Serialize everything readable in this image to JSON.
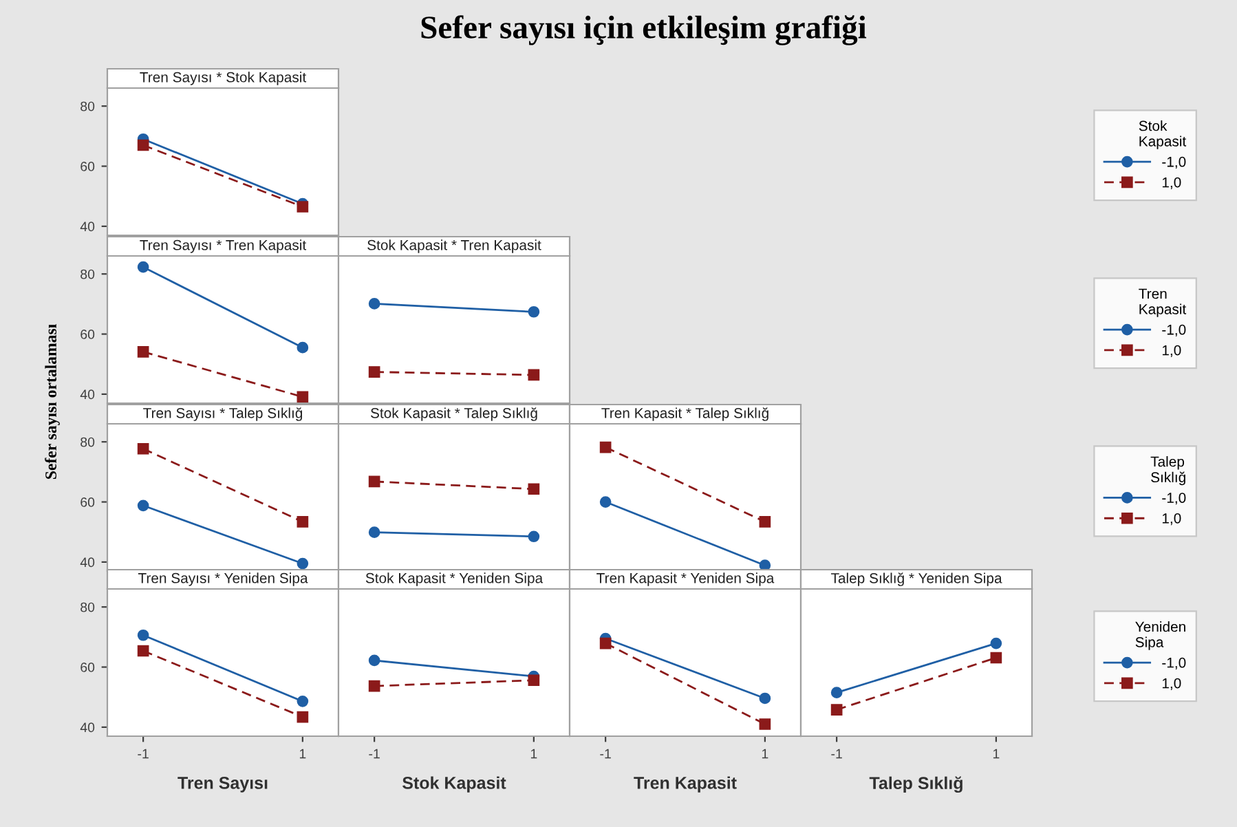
{
  "chart_data": [
    {
      "type": "line",
      "annotations": [
        "Sefer sayısı için etkileşim grafiği"
      ],
      "subtitle": "Tren Sayısı * Stok Kapasit",
      "categories": [
        "-1",
        "1"
      ],
      "ylim": [
        37,
        86
      ],
      "yticks": [
        40,
        60,
        80
      ],
      "tick_labels": "y",
      "legend": "right",
      "legend_title": "Stok Kapasit",
      "series": [
        {
          "name": "-1,0",
          "color": "#1f5fa5",
          "marker": "circle",
          "line_style": "solid",
          "values": [
            69,
            47.5
          ]
        },
        {
          "name": "1,0",
          "color": "#8b1a1a",
          "marker": "square",
          "line_style": "dashed",
          "values": [
            67,
            46.5
          ]
        }
      ]
    },
    {
      "type": "line",
      "subtitle": "Tren Sayısı * Tren Kapasit",
      "ylabel": "Sefer sayısı ortalaması",
      "categories": [
        "-1",
        "1"
      ],
      "ylim": [
        37,
        86
      ],
      "yticks": [
        40,
        60,
        80
      ],
      "tick_labels": "y",
      "series": [
        {
          "color": "#1f5fa5",
          "marker": "circle",
          "line_style": "solid",
          "values": [
            82.3,
            55.5
          ]
        },
        {
          "color": "#8b1a1a",
          "marker": "square",
          "line_style": "dashed",
          "values": [
            54.1,
            39.1
          ]
        }
      ]
    },
    {
      "type": "line",
      "subtitle": "Stok Kapasit * Tren Kapasit",
      "categories": [
        "-1",
        "1"
      ],
      "ylim": [
        37,
        86
      ],
      "yticks": [
        40,
        60,
        80
      ],
      "tick_labels": false,
      "legend": "right",
      "legend_title": "Tren Kapasit",
      "series": [
        {
          "name": "-1,0",
          "color": "#1f5fa5",
          "marker": "circle",
          "line_style": "solid",
          "values": [
            70.1,
            67.4
          ]
        },
        {
          "name": "1,0",
          "color": "#8b1a1a",
          "marker": "square",
          "line_style": "dashed",
          "values": [
            47.4,
            46.4
          ]
        }
      ]
    },
    {
      "type": "line",
      "subtitle": "Tren Sayısı * Talep Sıklığ",
      "categories": [
        "-1",
        "1"
      ],
      "ylim": [
        37,
        86
      ],
      "yticks": [
        40,
        60,
        80
      ],
      "tick_labels": "y",
      "series": [
        {
          "color": "#1f5fa5",
          "marker": "circle",
          "line_style": "solid",
          "values": [
            58.8,
            39.5
          ]
        },
        {
          "color": "#8b1a1a",
          "marker": "square",
          "line_style": "dashed",
          "values": [
            77.7,
            53.4
          ]
        }
      ]
    },
    {
      "type": "line",
      "subtitle": "Stok Kapasit * Talep Sıklığ",
      "categories": [
        "-1",
        "1"
      ],
      "ylim": [
        37,
        86
      ],
      "yticks": [
        40,
        60,
        80
      ],
      "tick_labels": false,
      "series": [
        {
          "color": "#1f5fa5",
          "marker": "circle",
          "line_style": "solid",
          "values": [
            49.9,
            48.5
          ]
        },
        {
          "color": "#8b1a1a",
          "marker": "square",
          "line_style": "dashed",
          "values": [
            66.8,
            64.3
          ]
        }
      ]
    },
    {
      "type": "line",
      "subtitle": "Tren Kapasit * Talep Sıklığ",
      "categories": [
        "-1",
        "1"
      ],
      "ylim": [
        37,
        86
      ],
      "yticks": [
        40,
        60,
        80
      ],
      "tick_labels": false,
      "legend": "right",
      "legend_title": "Talep Sıklığ",
      "series": [
        {
          "name": "-1,0",
          "color": "#1f5fa5",
          "marker": "circle",
          "line_style": "solid",
          "values": [
            60,
            38.9
          ]
        },
        {
          "name": "1,0",
          "color": "#8b1a1a",
          "marker": "square",
          "line_style": "dashed",
          "values": [
            78.2,
            53.4
          ]
        }
      ]
    },
    {
      "type": "line",
      "subtitle": "Tren Sayısı * Yeniden Sipa",
      "xlabel": "Tren Sayısı",
      "categories": [
        "-1",
        "1"
      ],
      "ylim": [
        37,
        86
      ],
      "yticks": [
        40,
        60,
        80
      ],
      "series": [
        {
          "color": "#1f5fa5",
          "marker": "circle",
          "line_style": "solid",
          "values": [
            70.6,
            48.6
          ]
        },
        {
          "color": "#8b1a1a",
          "marker": "square",
          "line_style": "dashed",
          "values": [
            65.4,
            43.4
          ]
        }
      ]
    },
    {
      "type": "line",
      "subtitle": "Stok Kapasit * Yeniden Sipa",
      "xlabel": "Stok Kapasit",
      "categories": [
        "-1",
        "1"
      ],
      "ylim": [
        37,
        86
      ],
      "yticks": [
        40,
        60,
        80
      ],
      "tick_labels": "x",
      "series": [
        {
          "color": "#1f5fa5",
          "marker": "circle",
          "line_style": "solid",
          "values": [
            62.2,
            56.9
          ]
        },
        {
          "color": "#8b1a1a",
          "marker": "square",
          "line_style": "dashed",
          "values": [
            53.7,
            55.6
          ]
        }
      ]
    },
    {
      "type": "line",
      "subtitle": "Tren Kapasit * Yeniden Sipa",
      "xlabel": "Tren Kapasit",
      "categories": [
        "-1",
        "1"
      ],
      "ylim": [
        37,
        86
      ],
      "yticks": [
        40,
        60,
        80
      ],
      "tick_labels": "x",
      "series": [
        {
          "color": "#1f5fa5",
          "marker": "circle",
          "line_style": "solid",
          "values": [
            69.5,
            49.6
          ]
        },
        {
          "color": "#8b1a1a",
          "marker": "square",
          "line_style": "dashed",
          "values": [
            67.9,
            41.0
          ]
        }
      ]
    },
    {
      "type": "line",
      "subtitle": "Talep Sıklığ * Yeniden Sipa",
      "xlabel": "Talep Sıklığ",
      "categories": [
        "-1",
        "1"
      ],
      "ylim": [
        37,
        86
      ],
      "yticks": [
        40,
        60,
        80
      ],
      "tick_labels": "x",
      "legend": "right",
      "legend_title": "Yeniden Sipa",
      "series": [
        {
          "name": "-1,0",
          "color": "#1f5fa5",
          "marker": "circle",
          "line_style": "solid",
          "values": [
            51.5,
            67.9
          ]
        },
        {
          "name": "1,0",
          "color": "#8b1a1a",
          "marker": "square",
          "line_style": "dashed",
          "values": [
            45.8,
            63.1
          ]
        }
      ]
    }
  ]
}
